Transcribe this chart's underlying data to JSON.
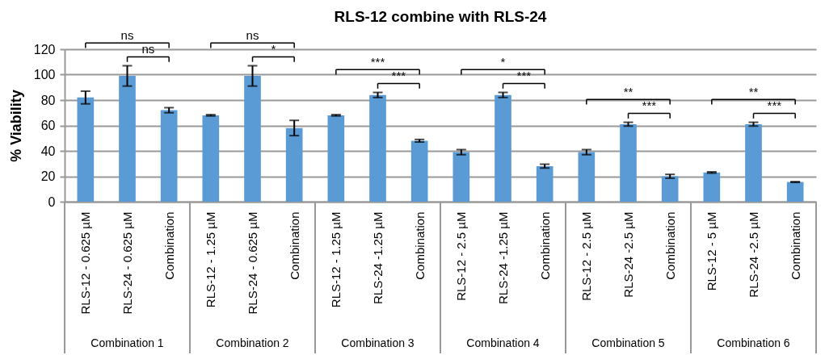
{
  "chart_data": {
    "type": "bar",
    "title": "RLS-12 combine with RLS-24",
    "ylabel": "% Viability",
    "categories": [
      "RLS-12 - 0.625 µM",
      "RLS-24 - 0.625 µM",
      "Combination",
      "RLS-12 - 1.25 µM",
      "RLS-24 - 0.625 µM",
      "Combination",
      "RLS-12 - 1.25 µM",
      "RLS-24 -1.25 µM",
      "Combination",
      "RLS-12 - 2.5 µM",
      "RLS-24 -1.25 µM",
      "Combination",
      "RLS-12 - 2.5 µM",
      "RLS-24 -2.5 µM",
      "Combination",
      "RLS-12 - 5 µM",
      "RLS-24 -2.5 µM",
      "Combination"
    ],
    "values": [
      82,
      99,
      72,
      68,
      99,
      58,
      68,
      84,
      48,
      39,
      84,
      28,
      39,
      61,
      20,
      23,
      61,
      15.5
    ],
    "errors": [
      5,
      8,
      2,
      0.5,
      8,
      6,
      0.5,
      2,
      1,
      2,
      2,
      1.5,
      2,
      1.5,
      1.5,
      0.5,
      1.5,
      0.3
    ],
    "color": "#5b9bd5",
    "ylim": [
      0,
      120
    ],
    "yticks": [
      0,
      20,
      40,
      60,
      80,
      100,
      120
    ],
    "grid": "y",
    "annotations": [
      "ns",
      "ns",
      "Combination 1",
      "ns",
      "*",
      "Combination 2",
      "***",
      "***",
      "Combination 3",
      "*",
      "***",
      "Combination 4",
      "**",
      "***",
      "Combination 5",
      "**",
      "***",
      "Combination 6"
    ]
  }
}
